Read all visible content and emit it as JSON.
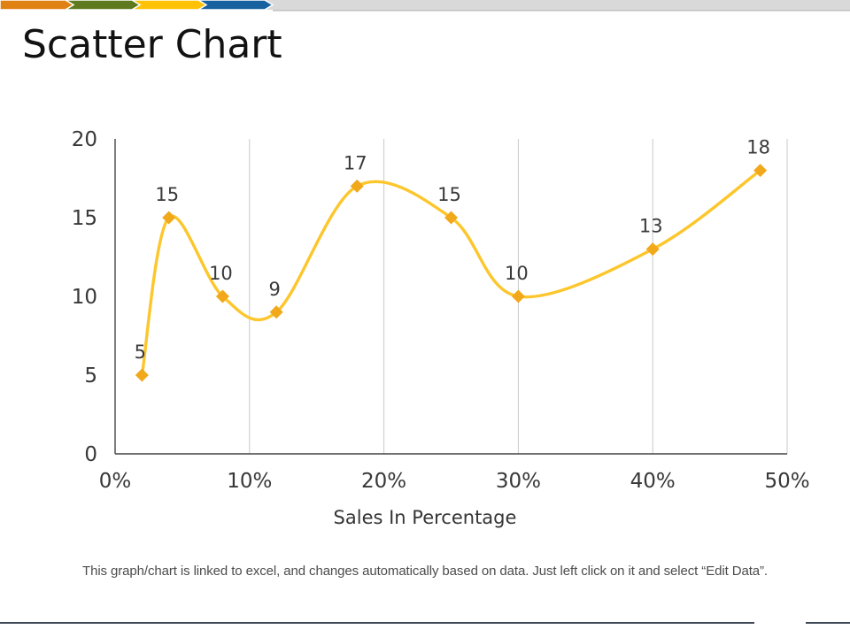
{
  "slide": {
    "title": "Scatter Chart",
    "footer_note": "This graph/chart is linked to excel, and changes automatically based on data. Just left click on it and select “Edit Data”."
  },
  "banner": {
    "chevron_colors": [
      "#E08114",
      "#5F7A1E",
      "#FFC207",
      "#17629E"
    ],
    "bar_color": "#D9D9D9",
    "shadow_color": "#C2C2C2"
  },
  "bottom_rule_color": "#3E4755",
  "chart_data": {
    "type": "scatter",
    "title": "",
    "xlabel": "Sales In Percentage",
    "ylabel": "",
    "x": [
      2,
      4,
      8,
      12,
      18,
      25,
      30,
      40,
      48
    ],
    "y": [
      5,
      15,
      10,
      9,
      17,
      15,
      10,
      13,
      18
    ],
    "point_labels": [
      "5",
      "15",
      "10",
      "9",
      "17",
      "15",
      "10",
      "13",
      "18"
    ],
    "xlim": [
      0,
      50
    ],
    "ylim": [
      0,
      20
    ],
    "x_ticks": [
      0,
      10,
      20,
      30,
      40,
      50
    ],
    "x_tick_labels": [
      "0%",
      "10%",
      "20%",
      "30%",
      "40%",
      "50%"
    ],
    "y_ticks": [
      0,
      5,
      10,
      15,
      20
    ],
    "y_tick_labels": [
      "0",
      "5",
      "10",
      "15",
      "20"
    ],
    "grid": "vertical-only",
    "legend": "none",
    "smooth_line": true,
    "marker_shape": "diamond",
    "line_color": "#FCC62C",
    "marker_color": "#F1A81B",
    "label_color": "#3a3a3a",
    "tick_color": "#383838",
    "axis_color": "#454545",
    "gridline_color": "#C9C9C9"
  }
}
